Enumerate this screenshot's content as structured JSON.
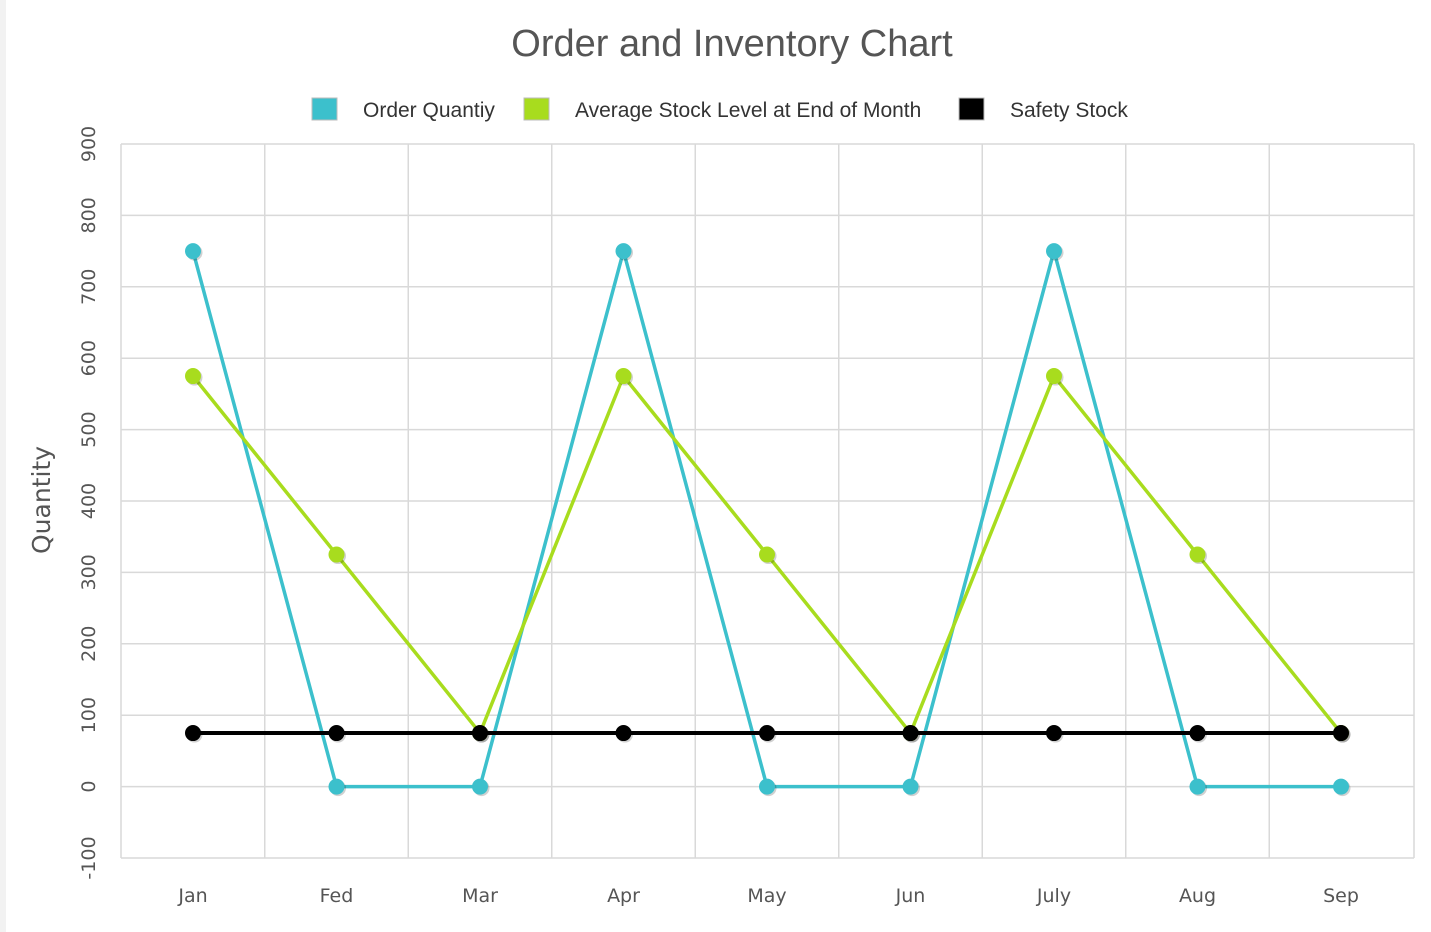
{
  "chart_data": {
    "type": "line",
    "title": "Order and Inventory Chart",
    "xlabel": "",
    "ylabel": "Quantity",
    "ylim": [
      -100,
      900
    ],
    "yticks": [
      -100,
      0,
      100,
      200,
      300,
      400,
      500,
      600,
      700,
      800,
      900
    ],
    "categories": [
      "Jan",
      "Fed",
      "Mar",
      "Apr",
      "May",
      "Jun",
      "July",
      "Aug",
      "Sep"
    ],
    "grid": true,
    "legend_position": "top",
    "series": [
      {
        "name": "Order Quantiy",
        "color": "#3cc0cc",
        "values": [
          750,
          0,
          0,
          750,
          0,
          0,
          750,
          0,
          0
        ]
      },
      {
        "name": "Average Stock Level at End of Month",
        "color": "#a8dc1e",
        "values": [
          575,
          325,
          75,
          575,
          325,
          75,
          575,
          325,
          75
        ]
      },
      {
        "name": "Safety Stock",
        "color": "#000000",
        "values": [
          75,
          75,
          75,
          75,
          75,
          75,
          75,
          75,
          75
        ]
      }
    ]
  }
}
